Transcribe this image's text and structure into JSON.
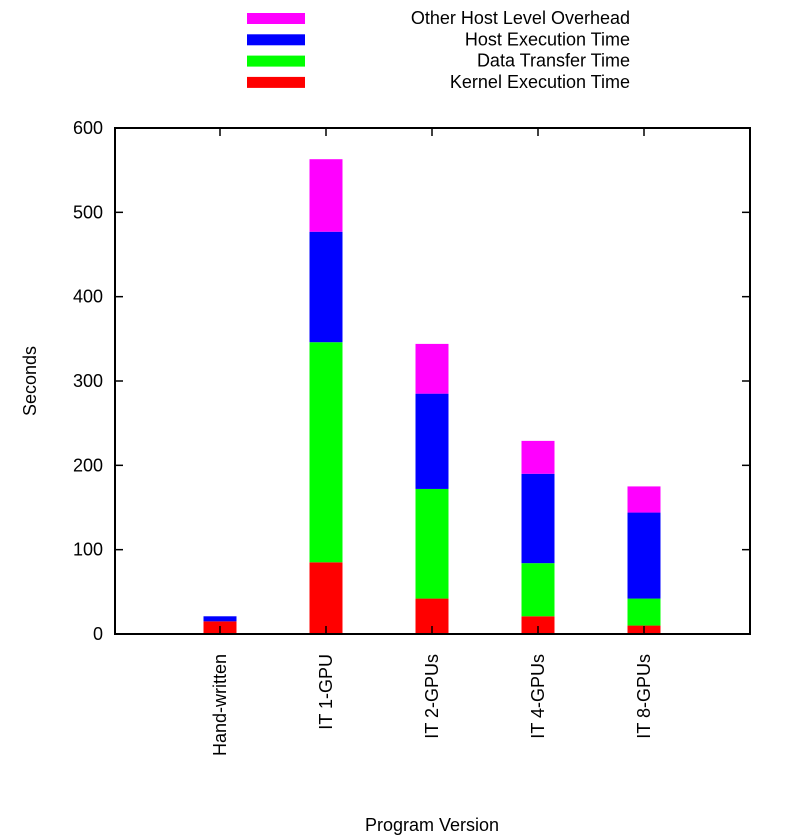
{
  "chart_data": {
    "type": "bar",
    "stacked": true,
    "title": "",
    "xlabel": "Program Version",
    "ylabel": "Seconds",
    "ylim": [
      0,
      600
    ],
    "yticks": [
      0,
      100,
      200,
      300,
      400,
      500,
      600
    ],
    "categories": [
      "Hand-written",
      "IT 1-GPU",
      "IT 2-GPUs",
      "IT 4-GPUs",
      "IT 8-GPUs"
    ],
    "series": [
      {
        "name": "Kernel Execution Time",
        "color": "#ff0000",
        "values": [
          15,
          85,
          42,
          21,
          10
        ]
      },
      {
        "name": "Data Transfer Time",
        "color": "#00ff00",
        "values": [
          0,
          261,
          130,
          63,
          32
        ]
      },
      {
        "name": "Host Execution Time",
        "color": "#0000ff",
        "values": [
          6,
          131,
          113,
          106,
          102
        ]
      },
      {
        "name": "Other Host Level Overhead",
        "color": "#ff00ff",
        "values": [
          0,
          86,
          59,
          39,
          31
        ]
      }
    ],
    "legend_position": "top-center",
    "grid": false
  }
}
